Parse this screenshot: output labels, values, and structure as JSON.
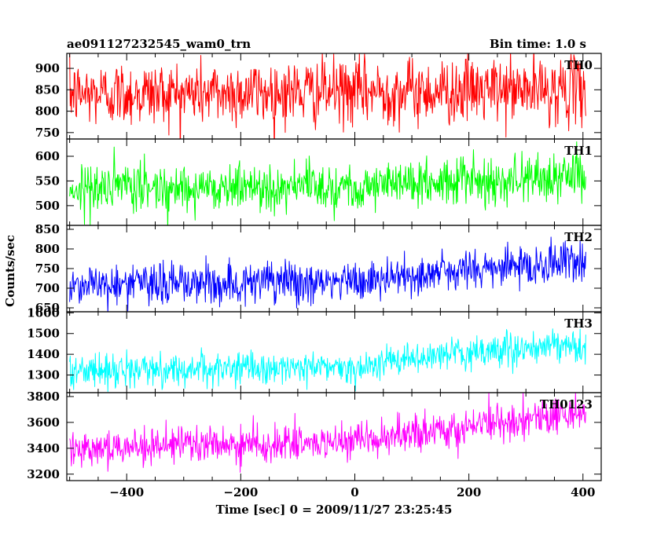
{
  "header": {
    "title": "ae091127232545_wam0_trn",
    "bin_time": "Bin time: 1.0 s"
  },
  "axes": {
    "xlabel": "Time [sec] 0 = 2009/11/27 23:25:45",
    "ylabel": "Counts/sec"
  },
  "chart_data": {
    "type": "line",
    "x": {
      "start": -500,
      "end": 405,
      "step": 1
    },
    "xlim": [
      -505,
      432
    ],
    "xticks": [
      -400,
      -200,
      0,
      200,
      400
    ],
    "series": [
      {
        "name": "TH0",
        "color": "#ff0000",
        "ylim": [
          735,
          935
        ],
        "yticks": [
          750,
          800,
          850,
          900
        ],
        "baseline": [
          [
            -500,
            840
          ],
          [
            400,
            850
          ]
        ],
        "noise_sd": 38
      },
      {
        "name": "TH1",
        "color": "#00ff00",
        "ylim": [
          460,
          635
        ],
        "yticks": [
          500,
          550,
          600
        ],
        "baseline": [
          [
            -500,
            535
          ],
          [
            0,
            540
          ],
          [
            400,
            560
          ]
        ],
        "noise_sd": 24
      },
      {
        "name": "TH2",
        "color": "#0000ff",
        "ylim": [
          640,
          860
        ],
        "yticks": [
          650,
          700,
          750,
          800,
          850
        ],
        "baseline": [
          [
            -500,
            710
          ],
          [
            0,
            715
          ],
          [
            150,
            740
          ],
          [
            400,
            770
          ]
        ],
        "noise_sd": 27
      },
      {
        "name": "TH3",
        "color": "#00ffff",
        "ylim": [
          1215,
          1605
        ],
        "yticks": [
          1300,
          1400,
          1500,
          1600
        ],
        "baseline": [
          [
            -500,
            1320
          ],
          [
            0,
            1340
          ],
          [
            200,
            1410
          ],
          [
            400,
            1440
          ]
        ],
        "noise_sd": 38
      },
      {
        "name": "TH0123",
        "color": "#ff00ff",
        "ylim": [
          3150,
          3830
        ],
        "yticks": [
          3200,
          3400,
          3600,
          3800
        ],
        "baseline": [
          [
            -500,
            3410
          ],
          [
            0,
            3440
          ],
          [
            200,
            3570
          ],
          [
            400,
            3680
          ]
        ],
        "noise_sd": 70
      }
    ]
  }
}
